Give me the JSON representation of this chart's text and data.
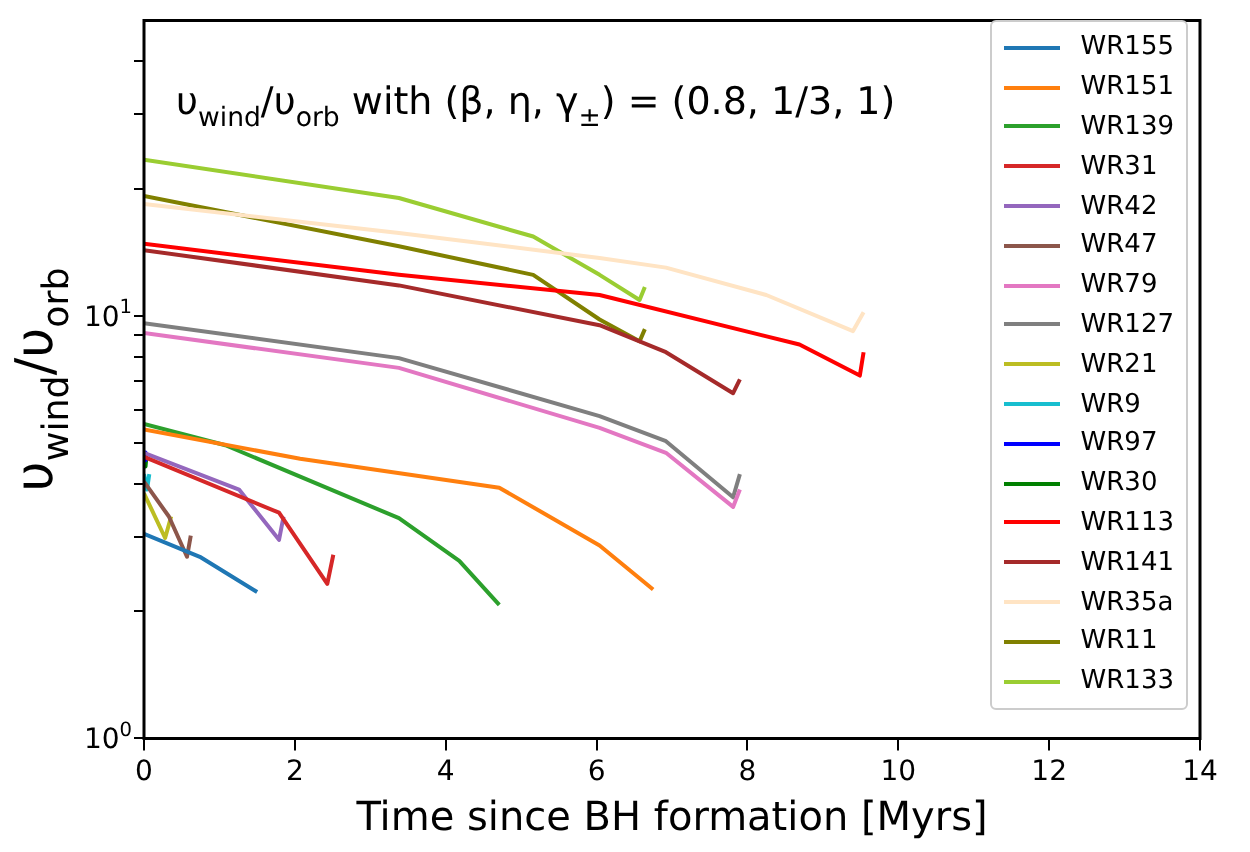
{
  "chart_data": {
    "type": "line",
    "title": "υ$_{wind}$/υ$_{orb}$ with (β, η, γ$_{±}$) = (0.8, 1/3, 1)",
    "xlabel": "Time since BH formation [Myrs]",
    "ylabel": "υ$_{wind}$/υ$_{orb}$",
    "log": "y",
    "xlim": [
      0,
      14
    ],
    "xticks": [
      0,
      2,
      4,
      6,
      8,
      10,
      12,
      14
    ],
    "ylim": [
      1,
      50
    ],
    "yticks": [
      {
        "value": 1,
        "label": "10$^{0}$"
      },
      {
        "value": 2,
        "label": null
      },
      {
        "value": 3,
        "label": null
      },
      {
        "value": 4,
        "label": null
      },
      {
        "value": 5,
        "label": null
      },
      {
        "value": 6,
        "label": null
      },
      {
        "value": 7,
        "label": null
      },
      {
        "value": 8,
        "label": null
      },
      {
        "value": 9,
        "label": null
      },
      {
        "value": 10,
        "label": "10$^{1}$"
      },
      {
        "value": 20,
        "label": null
      },
      {
        "value": 30,
        "label": null
      },
      {
        "value": 40,
        "label": null
      }
    ],
    "legend": "top right",
    "marker": "none",
    "line_style": "solid",
    "series": [
      {
        "name": "WR155",
        "color": "#1f77b4",
        "x": [
          0,
          0.74,
          1.5
        ],
        "values": [
          3.05,
          2.69,
          2.22
        ]
      },
      {
        "name": "WR151",
        "color": "#ff7f0e",
        "x": [
          0,
          2.07,
          4.71,
          6.04,
          6.75
        ],
        "values": [
          5.38,
          4.59,
          3.92,
          2.86,
          2.25
        ]
      },
      {
        "name": "WR139",
        "color": "#2ca02c",
        "x": [
          0,
          1.08,
          3.38,
          4.18,
          4.71
        ],
        "values": [
          5.55,
          4.94,
          3.32,
          2.63,
          2.07
        ]
      },
      {
        "name": "WR31",
        "color": "#d62728",
        "x": [
          0,
          1.79,
          2.43,
          2.51
        ],
        "values": [
          4.64,
          3.42,
          2.32,
          2.72
        ]
      },
      {
        "name": "WR42",
        "color": "#9467bd",
        "x": [
          0,
          1.26,
          1.79,
          1.85
        ],
        "values": [
          4.74,
          3.88,
          2.95,
          3.35
        ]
      },
      {
        "name": "WR47",
        "color": "#8c564b",
        "x": [
          0,
          0.33,
          0.57,
          0.62
        ],
        "values": [
          4.05,
          3.35,
          2.69,
          3.02
        ]
      },
      {
        "name": "WR79",
        "color": "#e377c2",
        "x": [
          0,
          3.38,
          6.04,
          6.92,
          7.81,
          7.9
        ],
        "values": [
          9.1,
          7.53,
          5.43,
          4.74,
          3.53,
          3.88
        ]
      },
      {
        "name": "WR127",
        "color": "#7f7f7f",
        "x": [
          0,
          3.38,
          6.04,
          6.92,
          7.81,
          7.9
        ],
        "values": [
          9.6,
          7.94,
          5.79,
          5.05,
          3.72,
          4.22
        ]
      },
      {
        "name": "WR21",
        "color": "#bcbd22",
        "x": [
          0,
          0.28,
          0.36
        ],
        "values": [
          3.8,
          2.98,
          3.35
        ]
      },
      {
        "name": "WR9",
        "color": "#17becf",
        "x": [
          0,
          0.04,
          0.07
        ],
        "values": [
          4.22,
          3.88,
          4.22
        ]
      },
      {
        "name": "WR97",
        "color": "#0000ff",
        "x": [
          0,
          0.02,
          0.03
        ],
        "values": [
          4.75,
          4.55,
          4.7
        ]
      },
      {
        "name": "WR30",
        "color": "#008000",
        "x": [
          0,
          0.02,
          0.03
        ],
        "values": [
          4.6,
          4.4,
          4.6
        ]
      },
      {
        "name": "WR113",
        "color": "#ff0000",
        "x": [
          0,
          3.38,
          6.04,
          8.69,
          9.49,
          9.54
        ],
        "values": [
          14.8,
          12.5,
          11.2,
          8.55,
          7.22,
          8.2
        ]
      },
      {
        "name": "WR141",
        "color": "#a52a2a",
        "x": [
          0,
          3.38,
          6.04,
          6.92,
          7.81,
          7.9
        ],
        "values": [
          14.3,
          11.8,
          9.5,
          8.2,
          6.56,
          7.07
        ]
      },
      {
        "name": "WR35a",
        "color": "#ffe4c4",
        "x": [
          0,
          3.38,
          6.04,
          6.92,
          8.25,
          9.4,
          9.54
        ],
        "values": [
          18.4,
          15.7,
          13.7,
          13.0,
          11.2,
          9.2,
          10.2
        ]
      },
      {
        "name": "WR11",
        "color": "#808000",
        "x": [
          0,
          3.38,
          5.16,
          6.04,
          6.57,
          6.64
        ],
        "values": [
          19.2,
          14.6,
          12.5,
          9.8,
          8.7,
          9.3
        ]
      },
      {
        "name": "WR133",
        "color": "#9acd32",
        "x": [
          0,
          3.38,
          5.16,
          6.04,
          6.57,
          6.64
        ],
        "values": [
          23.4,
          19.0,
          15.4,
          12.5,
          10.9,
          11.7
        ]
      }
    ]
  }
}
